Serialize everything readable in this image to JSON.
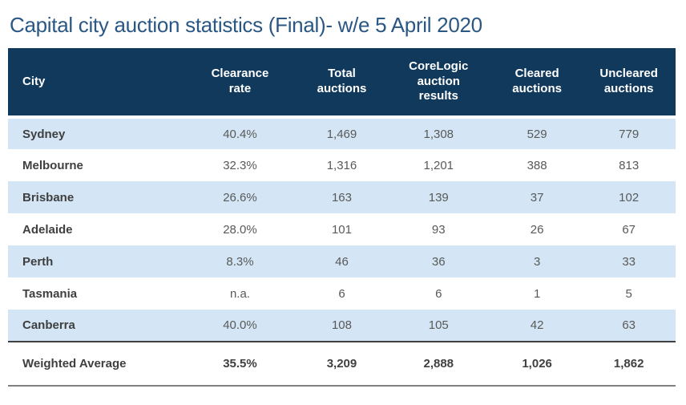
{
  "title": "Capital city auction statistics (Final)- w/e 5 April 2020",
  "colors": {
    "title_text": "#2A5783",
    "header_bg": "#11395C",
    "header_text": "#FFFFFF",
    "row_band_bg": "#D4E6F5",
    "row_plain_bg": "#FFFFFF",
    "city_text": "#3F3F3F",
    "value_text": "#595959",
    "summary_rule_top": "#404040",
    "summary_rule_bottom": "#808080"
  },
  "table": {
    "columns": [
      "City",
      "Clearance rate",
      "Total auctions",
      "CoreLogic auction results",
      "Cleared auctions",
      "Uncleared auctions"
    ],
    "rows": [
      {
        "city": "Sydney",
        "values": [
          "40.4%",
          "1,469",
          "1,308",
          "529",
          "779"
        ]
      },
      {
        "city": "Melbourne",
        "values": [
          "32.3%",
          "1,316",
          "1,201",
          "388",
          "813"
        ]
      },
      {
        "city": "Brisbane",
        "values": [
          "26.6%",
          "163",
          "139",
          "37",
          "102"
        ]
      },
      {
        "city": "Adelaide",
        "values": [
          "28.0%",
          "101",
          "93",
          "26",
          "67"
        ]
      },
      {
        "city": "Perth",
        "values": [
          "8.3%",
          "46",
          "36",
          "3",
          "33"
        ]
      },
      {
        "city": "Tasmania",
        "values": [
          "n.a.",
          "6",
          "6",
          "1",
          "5"
        ]
      },
      {
        "city": "Canberra",
        "values": [
          "40.0%",
          "108",
          "105",
          "42",
          "63"
        ]
      }
    ],
    "summary_row": {
      "city": "Weighted Average",
      "values": [
        "35.5%",
        "3,209",
        "2,888",
        "1,026",
        "1,862"
      ]
    }
  },
  "chart_data": {
    "type": "table",
    "title": "Capital city auction statistics (Final)- w/e 5 April 2020",
    "columns": [
      "City",
      "Clearance rate",
      "Total auctions",
      "CoreLogic auction results",
      "Cleared auctions",
      "Uncleared auctions"
    ],
    "rows": [
      [
        "Sydney",
        "40.4%",
        1469,
        1308,
        529,
        779
      ],
      [
        "Melbourne",
        "32.3%",
        1316,
        1201,
        388,
        813
      ],
      [
        "Brisbane",
        "26.6%",
        163,
        139,
        37,
        102
      ],
      [
        "Adelaide",
        "28.0%",
        101,
        93,
        26,
        67
      ],
      [
        "Perth",
        "8.3%",
        46,
        36,
        3,
        33
      ],
      [
        "Tasmania",
        "n.a.",
        6,
        6,
        1,
        5
      ],
      [
        "Canberra",
        "40.0%",
        108,
        105,
        42,
        63
      ],
      [
        "Weighted Average",
        "35.5%",
        3209,
        2888,
        1026,
        1862
      ]
    ],
    "layout_hints": {
      "banded_rows": true,
      "band_color": "#D4E6F5",
      "header_color": "#11395C",
      "summary_row_bold": true
    }
  }
}
